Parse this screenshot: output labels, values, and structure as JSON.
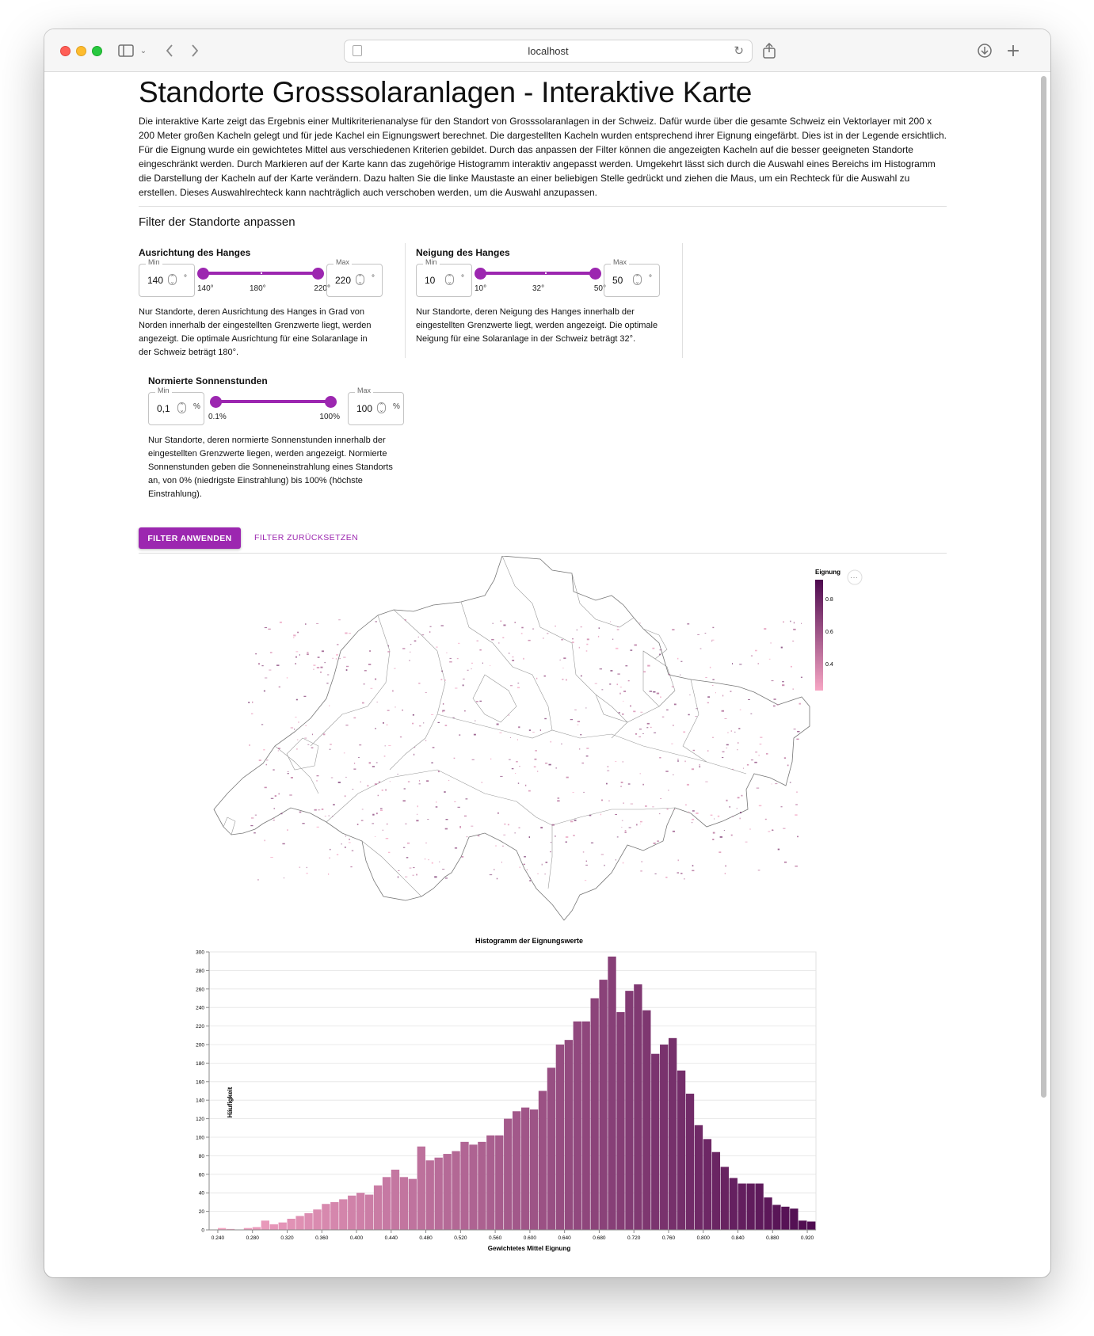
{
  "browser": {
    "url": "localhost",
    "sidebar_icon": "sidebar-icon",
    "back_icon": "chevron-left-icon",
    "forward_icon": "chevron-right-icon",
    "share_icon": "share-icon",
    "download_icon": "download-icon",
    "new_tab_icon": "plus-icon"
  },
  "page": {
    "title": "Standorte Grosssolaranlagen - Interaktive Karte",
    "intro": "Die interaktive Karte zeigt das Ergebnis einer Multikriterienanalyse für den Standort von Grosssolaranlagen in der Schweiz. Dafür wurde über die gesamte Schweiz ein Vektorlayer mit 200 x 200 Meter großen Kacheln gelegt und für jede Kachel ein Eignungswert berechnet. Die dargestellten Kacheln wurden entsprechend ihrer Eignung eingefärbt. Dies ist in der Legende ersichtlich. Für die Eignung wurde ein gewichtetes Mittel aus verschiedenen Kriterien gebildet. Durch das anpassen der Filter können die angezeigten Kacheln auf die besser geeigneten Standorte eingeschränkt werden. Durch Markieren auf der Karte kann das zugehörige Histogramm interaktiv angepasst werden. Umgekehrt lässt sich durch die Auswahl eines Bereichs im Histogramm die Darstellung der Kacheln auf der Karte verändern. Dazu halten Sie die linke Maustaste an einer beliebigen Stelle gedrückt und ziehen die Maus, um ein Rechteck für die Auswahl zu erstellen. Dieses Auswahlrechteck kann nachträglich auch verschoben werden, um die Auswahl anzupassen.",
    "filter_section_title": "Filter der Standorte anpassen"
  },
  "filters": {
    "ausrichtung": {
      "title": "Ausrichtung des Hanges",
      "min_label": "Min",
      "min_value": "140",
      "max_label": "Max",
      "max_value": "220",
      "unit": "°",
      "tick_min": "140°",
      "tick_mid": "180°",
      "tick_max": "220°",
      "slider_low_fraction": 0.0,
      "slider_high_fraction": 1.0,
      "description": "Nur Standorte, deren Ausrichtung des Hanges in Grad von Norden innerhalb der eingestellten Grenzwerte liegt, werden angezeigt. Die optimale Ausrichtung für eine Solaranlage in der Schweiz beträgt 180°."
    },
    "neigung": {
      "title": "Neigung des Hanges",
      "min_label": "Min",
      "min_value": "10",
      "max_label": "Max",
      "max_value": "50",
      "unit": "°",
      "tick_min": "10°",
      "tick_mid": "32°",
      "tick_max": "50°",
      "slider_low_fraction": 0.0,
      "slider_high_fraction": 1.0,
      "description": "Nur Standorte, deren Neigung des Hanges innerhalb der eingestellten Grenzwerte liegt, werden angezeigt. Die optimale Neigung für eine Solaranlage in der Schweiz beträgt 32°."
    },
    "sonnenstunden": {
      "title": "Normierte Sonnenstunden",
      "min_label": "Min",
      "min_value": "0,1",
      "max_label": "Max",
      "max_value": "100",
      "unit": "%",
      "tick_min": "0.1%",
      "tick_max": "100%",
      "slider_low_fraction": 0.0,
      "slider_high_fraction": 1.0,
      "description": "Nur Standorte, deren normierte Sonnenstunden innerhalb der eingestellten Grenzwerte liegen, werden angezeigt. Normierte Sonnenstunden geben die Sonneneinstrahlung eines Standorts an, von 0% (niedrigste Einstrahlung) bis 100% (höchste Einstrahlung)."
    },
    "apply_label": "FILTER ANWENDEN",
    "reset_label": "FILTER ZURÜCKSETZEN"
  },
  "map": {
    "legend_title": "Eignung",
    "legend_ticks": [
      "0.8",
      "0.6",
      "0.4"
    ],
    "menu_icon": "ellipsis-icon",
    "colors": {
      "low": "#f7a6c4",
      "high": "#4d0a4f"
    }
  },
  "chart_data": {
    "type": "bar",
    "title": "Histogramm der Eignungswerte",
    "xlabel": "Gewichtetes Mittel Eignung",
    "ylabel": "Häufigkeit",
    "xlim": [
      0.23,
      0.93
    ],
    "ylim": [
      0,
      300
    ],
    "bin_width": 0.01,
    "x_ticks": [
      "0.240",
      "0.280",
      "0.320",
      "0.360",
      "0.400",
      "0.440",
      "0.480",
      "0.520",
      "0.560",
      "0.600",
      "0.640",
      "0.680",
      "0.720",
      "0.760",
      "0.800",
      "0.840",
      "0.880",
      "0.920"
    ],
    "y_ticks": [
      0,
      20,
      40,
      60,
      80,
      100,
      120,
      140,
      160,
      180,
      200,
      220,
      240,
      260,
      280,
      300
    ],
    "grid": true,
    "bin_starts": [
      0.23,
      0.24,
      0.25,
      0.26,
      0.27,
      0.28,
      0.29,
      0.3,
      0.31,
      0.32,
      0.33,
      0.34,
      0.35,
      0.36,
      0.37,
      0.38,
      0.39,
      0.4,
      0.41,
      0.42,
      0.43,
      0.44,
      0.45,
      0.46,
      0.47,
      0.48,
      0.49,
      0.5,
      0.51,
      0.52,
      0.53,
      0.54,
      0.55,
      0.56,
      0.57,
      0.58,
      0.59,
      0.6,
      0.61,
      0.62,
      0.63,
      0.64,
      0.65,
      0.66,
      0.67,
      0.68,
      0.69,
      0.7,
      0.71,
      0.72,
      0.73,
      0.74,
      0.75,
      0.76,
      0.77,
      0.78,
      0.79,
      0.8,
      0.81,
      0.82,
      0.83,
      0.84,
      0.85,
      0.86,
      0.87,
      0.88,
      0.89,
      0.9,
      0.91,
      0.92
    ],
    "values": [
      0,
      2,
      1,
      0,
      2,
      3,
      10,
      6,
      8,
      12,
      15,
      18,
      22,
      28,
      30,
      33,
      37,
      40,
      38,
      48,
      57,
      65,
      57,
      55,
      90,
      75,
      78,
      82,
      85,
      95,
      92,
      95,
      102,
      102,
      120,
      128,
      132,
      130,
      150,
      175,
      200,
      205,
      225,
      225,
      250,
      270,
      295,
      235,
      258,
      265,
      237,
      190,
      200,
      207,
      172,
      147,
      113,
      98,
      84,
      68,
      56,
      50,
      50,
      50,
      35,
      27,
      25,
      23,
      10,
      9
    ],
    "colors": {
      "low": "#f7a6c4",
      "high": "#4d0a4f"
    }
  }
}
